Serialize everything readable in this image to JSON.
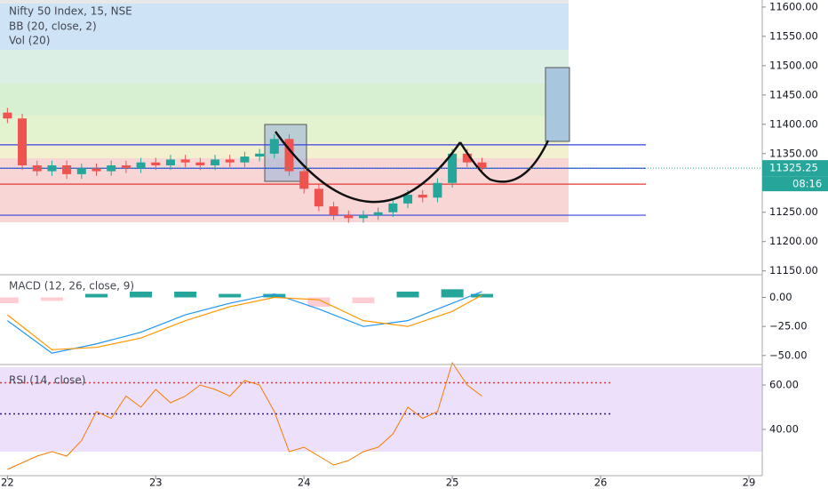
{
  "chart_data": [
    {
      "type": "candlestick",
      "title": "Nifty 50 Index, 15, NSE",
      "indicator_bb": "BB (20, close, 2)",
      "indicator_vol": "Vol (20)",
      "xlim": [
        -0.05,
        5.09
      ],
      "ylim": [
        11145,
        11612
      ],
      "yticks": [
        {
          "value": 11150,
          "label": "11150.00"
        },
        {
          "value": 11200,
          "label": "11200.00"
        },
        {
          "value": 11250,
          "label": "11250.00"
        },
        {
          "value": 11300,
          "label": "11300.00"
        },
        {
          "value": 11350,
          "label": "11350.00"
        },
        {
          "value": 11400,
          "label": "11400.00"
        },
        {
          "value": 11450,
          "label": "11450.00"
        },
        {
          "value": 11500,
          "label": "11500.00"
        },
        {
          "value": 11550,
          "label": "11550.00"
        },
        {
          "value": 11600,
          "label": "11600.00"
        }
      ],
      "up_color": "#26a69a",
      "down_color": "#ef5350",
      "x": [
        0,
        0.1,
        0.2,
        0.3,
        0.4,
        0.5,
        0.6,
        0.7,
        0.8,
        0.9,
        1.0,
        1.1,
        1.2,
        1.3,
        1.4,
        1.5,
        1.6,
        1.7,
        1.8,
        1.9,
        2.0,
        2.1,
        2.2,
        2.3,
        2.4,
        2.5,
        2.6,
        2.7,
        2.8,
        2.9,
        3.0,
        3.1,
        3.2
      ],
      "open": [
        11420,
        11410,
        11330,
        11320,
        11330,
        11315,
        11325,
        11320,
        11330,
        11325,
        11335,
        11330,
        11340,
        11335,
        11330,
        11340,
        11335,
        11345,
        11350,
        11375,
        11320,
        11290,
        11260,
        11245,
        11240,
        11245,
        11250,
        11265,
        11280,
        11275,
        11300,
        11350,
        11335
      ],
      "high": [
        11428,
        11418,
        11338,
        11338,
        11338,
        11333,
        11333,
        11338,
        11338,
        11343,
        11343,
        11348,
        11348,
        11343,
        11348,
        11348,
        11353,
        11358,
        11383,
        11383,
        11328,
        11298,
        11268,
        11253,
        11253,
        11258,
        11273,
        11288,
        11288,
        11308,
        11358,
        11358,
        11343
      ],
      "low": [
        11402,
        11322,
        11312,
        11312,
        11307,
        11307,
        11312,
        11312,
        11317,
        11317,
        11322,
        11322,
        11327,
        11322,
        11322,
        11327,
        11327,
        11337,
        11342,
        11312,
        11282,
        11252,
        11237,
        11232,
        11232,
        11237,
        11242,
        11257,
        11267,
        11267,
        11292,
        11327,
        11317
      ],
      "close": [
        11410,
        11330,
        11320,
        11330,
        11315,
        11325,
        11320,
        11330,
        11325,
        11335,
        11330,
        11340,
        11335,
        11330,
        11340,
        11335,
        11345,
        11350,
        11375,
        11320,
        11290,
        11260,
        11245,
        11240,
        11245,
        11250,
        11265,
        11280,
        11275,
        11300,
        11350,
        11335,
        11325
      ],
      "levels": [
        {
          "value": 11365,
          "color": "#3344dd"
        },
        {
          "value": 11325,
          "color": "#3344dd"
        },
        {
          "value": 11298,
          "color": "#e53935"
        },
        {
          "value": 11245,
          "color": "#3344dd"
        }
      ],
      "last_price": {
        "value": 11325.25,
        "label": "11325.25"
      },
      "countdown": "08:16"
    },
    {
      "type": "macd",
      "title": "MACD (12, 26, close, 9)",
      "xlim": [
        -0.05,
        5.09
      ],
      "ylim": [
        -56.25,
        18.75
      ],
      "yticks": [
        {
          "value": 0,
          "label": "0.00"
        },
        {
          "value": -25,
          "label": "−25.00"
        },
        {
          "value": -50,
          "label": "−50.00"
        }
      ],
      "x": [
        0,
        0.3,
        0.6,
        0.9,
        1.2,
        1.5,
        1.8,
        2.1,
        2.4,
        2.7,
        3.0,
        3.2
      ],
      "macd": {
        "color": "#2196f3",
        "values": [
          -20,
          -48,
          -40,
          -30,
          -15,
          -5,
          3,
          -10,
          -25,
          -20,
          -5,
          5
        ]
      },
      "signal": {
        "color": "#ff9800",
        "values": [
          -15,
          -45,
          -43,
          -35,
          -20,
          -8,
          0,
          -2,
          -20,
          -25,
          -12,
          2
        ]
      },
      "histogram": {
        "up_color": "#26a69a",
        "down_color": "#ffcdd2",
        "values": [
          -5,
          -3,
          3,
          5,
          5,
          3,
          3,
          -8,
          -5,
          5,
          7,
          3
        ]
      }
    },
    {
      "type": "line",
      "title": "RSI (14, close)",
      "xlim": [
        -0.05,
        5.09
      ],
      "ylim": [
        19.2,
        69.2
      ],
      "yticks": [
        {
          "value": 60,
          "label": "60.00"
        },
        {
          "value": 40,
          "label": "40.00"
        }
      ],
      "xticks": [
        {
          "value": 0,
          "label": "22"
        },
        {
          "value": 1,
          "label": "23"
        },
        {
          "value": 2,
          "label": "24"
        },
        {
          "value": 3,
          "label": "25"
        },
        {
          "value": 4,
          "label": "26"
        },
        {
          "value": 5,
          "label": "29"
        }
      ],
      "x": [
        0,
        0.1,
        0.2,
        0.3,
        0.4,
        0.5,
        0.6,
        0.7,
        0.8,
        0.9,
        1.0,
        1.1,
        1.2,
        1.3,
        1.4,
        1.5,
        1.6,
        1.7,
        1.8,
        1.9,
        2.0,
        2.1,
        2.2,
        2.3,
        2.4,
        2.5,
        2.6,
        2.7,
        2.8,
        2.9,
        3.0,
        3.1,
        3.2
      ],
      "color": "#f57c00",
      "values": [
        22,
        25,
        28,
        30,
        28,
        35,
        48,
        45,
        55,
        50,
        58,
        52,
        55,
        60,
        58,
        55,
        62,
        60,
        48,
        30,
        32,
        28,
        24,
        26,
        30,
        32,
        38,
        50,
        45,
        48,
        70,
        60,
        55
      ],
      "levels": [
        {
          "value": 61,
          "color": "#e53935"
        },
        {
          "value": 47,
          "color": "#311b92"
        }
      ]
    }
  ]
}
